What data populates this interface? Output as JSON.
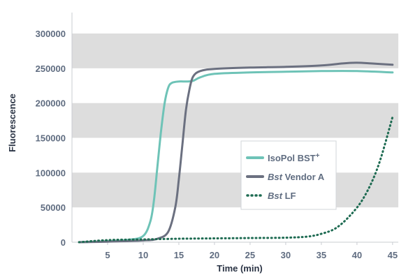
{
  "chart_data": {
    "type": "line",
    "title": "",
    "xlabel": "Time (min)",
    "ylabel": "Fluorescence",
    "xlim": [
      0,
      45.8
    ],
    "ylim": [
      0,
      300000
    ],
    "x_ticks": [
      "5",
      "10",
      "15",
      "20",
      "25",
      "30",
      "35",
      "40",
      "45"
    ],
    "y_ticks": [
      "0",
      "50000",
      "100000",
      "150000",
      "200000",
      "250000",
      "300000"
    ],
    "grid": "alternating horizontal bands",
    "legend_position": "center-right",
    "series": [
      {
        "name_parts": [
          {
            "text": "IsoPol BST",
            "italic": false
          },
          {
            "text": "+",
            "sup": true
          }
        ],
        "color": "#6ec3b7",
        "style": "solid",
        "points": [
          [
            1,
            0
          ],
          [
            5,
            1500
          ],
          [
            8,
            3500
          ],
          [
            10,
            9000
          ],
          [
            11,
            30000
          ],
          [
            11.5,
            60000
          ],
          [
            12,
            110000
          ],
          [
            12.5,
            160000
          ],
          [
            13,
            200000
          ],
          [
            13.5,
            222000
          ],
          [
            14,
            229000
          ],
          [
            15,
            231000
          ],
          [
            16,
            231000
          ],
          [
            17,
            232000
          ],
          [
            18,
            237000
          ],
          [
            20,
            242000
          ],
          [
            25,
            244000
          ],
          [
            30,
            245000
          ],
          [
            35,
            246000
          ],
          [
            40,
            246000
          ],
          [
            45,
            244000
          ]
        ]
      },
      {
        "name_parts": [
          {
            "text": "Bst",
            "italic": true
          },
          {
            "text": " Vendor A",
            "italic": false
          }
        ],
        "color": "#6b7080",
        "style": "solid",
        "points": [
          [
            1,
            0
          ],
          [
            5,
            800
          ],
          [
            10,
            2500
          ],
          [
            12,
            5000
          ],
          [
            13.5,
            15000
          ],
          [
            14.5,
            50000
          ],
          [
            15,
            90000
          ],
          [
            15.5,
            140000
          ],
          [
            16,
            190000
          ],
          [
            16.5,
            220000
          ],
          [
            17,
            238000
          ],
          [
            18,
            246000
          ],
          [
            20,
            249000
          ],
          [
            25,
            251000
          ],
          [
            30,
            252000
          ],
          [
            35,
            254000
          ],
          [
            38,
            257000
          ],
          [
            40,
            258000
          ],
          [
            42,
            257000
          ],
          [
            45,
            255000
          ]
        ]
      },
      {
        "name_parts": [
          {
            "text": "Bst",
            "italic": true
          },
          {
            "text": " LF",
            "italic": false
          }
        ],
        "color": "#1e6b52",
        "style": "dotted",
        "points": [
          [
            1,
            0
          ],
          [
            5,
            3000
          ],
          [
            10,
            4000
          ],
          [
            15,
            5000
          ],
          [
            20,
            5500
          ],
          [
            25,
            6000
          ],
          [
            30,
            6500
          ],
          [
            33,
            8000
          ],
          [
            35,
            12000
          ],
          [
            37,
            20000
          ],
          [
            39,
            38000
          ],
          [
            41,
            65000
          ],
          [
            43,
            110000
          ],
          [
            45,
            180000
          ]
        ]
      }
    ]
  }
}
